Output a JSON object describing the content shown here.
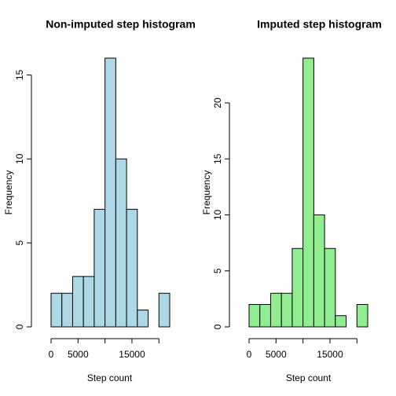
{
  "chart_data": [
    {
      "type": "histogram",
      "title": "Non-imputed step histogram",
      "x_label": "Step count",
      "y_label": "Frequency",
      "bins": [
        0,
        2000,
        4000,
        6000,
        8000,
        10000,
        12000,
        14000,
        16000,
        18000,
        20000,
        22000
      ],
      "values": [
        2,
        2,
        3,
        3,
        7,
        16,
        10,
        7,
        1,
        0,
        2
      ],
      "color": "#add8e6",
      "xlim": [
        0,
        22000
      ],
      "xticks": [
        0,
        5000,
        10000,
        15000,
        20000
      ],
      "ylim": [
        0,
        16
      ],
      "yticks": [
        0,
        5,
        10,
        15
      ]
    },
    {
      "type": "histogram",
      "title": "Imputed step histogram",
      "x_label": "Step count",
      "y_label": "Frequency",
      "bins": [
        0,
        2000,
        4000,
        6000,
        8000,
        10000,
        12000,
        14000,
        16000,
        18000,
        20000,
        22000
      ],
      "values": [
        2,
        2,
        3,
        3,
        7,
        24,
        10,
        7,
        1,
        0,
        2
      ],
      "color": "#90ee90",
      "xlim": [
        0,
        22000
      ],
      "xticks": [
        0,
        5000,
        10000,
        15000,
        20000
      ],
      "ylim": [
        0,
        24
      ],
      "yticks": [
        0,
        5,
        10,
        15,
        20
      ]
    }
  ]
}
